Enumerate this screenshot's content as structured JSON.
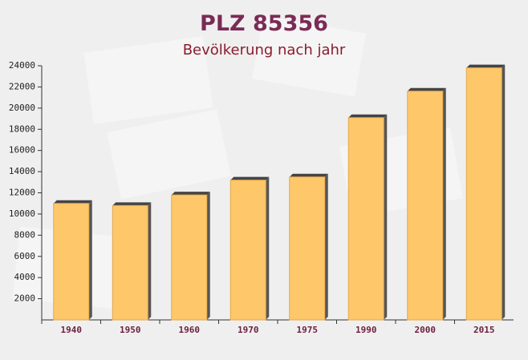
{
  "chart_data": {
    "type": "bar",
    "title": "PLZ 85356",
    "subtitle": "Bevölkerung nach jahr",
    "categories": [
      "1940",
      "1950",
      "1960",
      "1970",
      "1975",
      "1990",
      "2000",
      "2015"
    ],
    "values": [
      11000,
      10800,
      11800,
      13200,
      13500,
      19100,
      21600,
      23800
    ],
    "color": "#fdc76a",
    "ylim": [
      0,
      24000
    ],
    "yticks": [
      2000,
      4000,
      6000,
      8000,
      10000,
      12000,
      14000,
      16000,
      18000,
      20000,
      22000,
      24000
    ]
  }
}
